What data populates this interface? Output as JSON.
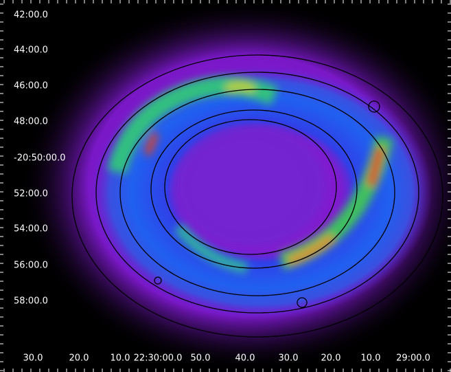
{
  "image": {
    "y_labels": [
      "42:00.0",
      "44:00.0",
      "46:00.0",
      "48:00.0",
      "-20:50:00.0",
      "52:00.0",
      "54:00.0",
      "56:00.0",
      "58:00.0"
    ],
    "x_labels": [
      "30.0",
      "20.0",
      "10.0",
      "22:30:00.0",
      "50.0",
      "40.0",
      "30.0",
      "20.0",
      "10.0",
      "29:00.0"
    ]
  }
}
